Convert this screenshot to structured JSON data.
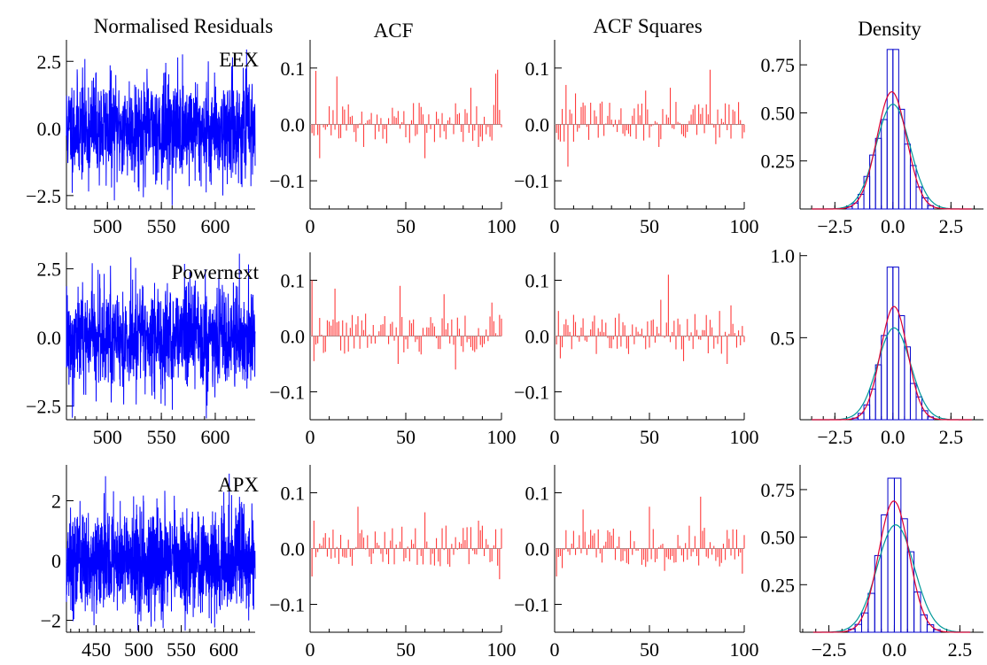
{
  "figure": {
    "column_titles": [
      "Normalised Residuals",
      "ACF",
      "ACF Squares",
      "Density"
    ]
  },
  "colors": {
    "residuals": "#0000ff",
    "acf_bars": "#ff3b3b",
    "zero_line": "#999999",
    "histogram": "#0000cc",
    "kernel_density": "#dd0033",
    "normal_density": "#009999",
    "axis": "#000000"
  },
  "chart_data": [
    {
      "type": "line",
      "panel": "residuals-eex",
      "series_label": "EEX",
      "x_range": [
        462,
        637
      ],
      "ylim": [
        -3.0,
        3.3
      ],
      "x_ticks": [
        500,
        550,
        600
      ],
      "y_ticks": [
        2.5,
        0.0,
        -2.5
      ],
      "y_tick_labels": [
        "2.5",
        "0.0",
        "−2.5"
      ],
      "n_points": 176,
      "seed": 11,
      "spread": 0.95
    },
    {
      "type": "bar",
      "panel": "acf-eex",
      "xlim": [
        0,
        100
      ],
      "ylim": [
        -0.15,
        0.15
      ],
      "x_ticks": [
        0,
        50,
        100
      ],
      "y_ticks": [
        0.1,
        0.0,
        -0.1
      ],
      "y_tick_labels": [
        "0.1",
        "0.0",
        "−0.1"
      ],
      "lags": 100,
      "seed": 21,
      "peaks": [
        [
          3,
          0.095
        ],
        [
          14,
          0.085
        ],
        [
          5,
          -0.06
        ],
        [
          28,
          -0.04
        ],
        [
          60,
          -0.06
        ],
        [
          84,
          0.065
        ],
        [
          98,
          0.097
        ],
        [
          97,
          0.09
        ],
        [
          88,
          -0.04
        ]
      ]
    },
    {
      "type": "bar",
      "panel": "acf-squares-eex",
      "xlim": [
        0,
        100
      ],
      "ylim": [
        -0.15,
        0.15
      ],
      "x_ticks": [
        0,
        50,
        100
      ],
      "y_ticks": [
        0.1,
        0.0,
        -0.1
      ],
      "y_tick_labels": [
        "0.1",
        "0.0",
        "−0.1"
      ],
      "lags": 100,
      "seed": 31,
      "peaks": [
        [
          6,
          0.07
        ],
        [
          7,
          -0.075
        ],
        [
          11,
          0.055
        ],
        [
          48,
          0.06
        ],
        [
          55,
          -0.04
        ],
        [
          61,
          0.065
        ],
        [
          82,
          0.097
        ],
        [
          85,
          -0.035
        ]
      ]
    },
    {
      "type": "bar",
      "panel": "density-eex",
      "xlim": [
        -4.0,
        3.9
      ],
      "ylim": [
        0,
        0.88
      ],
      "x_ticks": [
        -2.5,
        0.0,
        2.5
      ],
      "x_tick_labels": [
        "−2.5",
        "0.0",
        "2.5"
      ],
      "y_ticks": [
        0.75,
        0.5,
        0.25
      ],
      "y_tick_labels": [
        "0.75",
        "0.50",
        "0.25"
      ],
      "bin_width": 0.25,
      "normal_mean": 0.0,
      "normal_sd": 0.73,
      "normal_peak": 0.545,
      "kernel_mean": -0.05,
      "kernel_sd": 0.64,
      "kernel_peak": 0.61,
      "center_bar_value": 0.83
    },
    {
      "type": "line",
      "panel": "residuals-powernext",
      "series_label": "Powernext",
      "x_range": [
        462,
        637
      ],
      "ylim": [
        -3.0,
        3.1
      ],
      "x_ticks": [
        500,
        550,
        600
      ],
      "y_ticks": [
        2.5,
        0.0,
        -2.5
      ],
      "y_tick_labels": [
        "2.5",
        "0.0",
        "−2.5"
      ],
      "n_points": 176,
      "seed": 12,
      "spread": 0.95
    },
    {
      "type": "bar",
      "panel": "acf-powernext",
      "xlim": [
        0,
        100
      ],
      "ylim": [
        -0.15,
        0.15
      ],
      "x_ticks": [
        0,
        50,
        100
      ],
      "y_ticks": [
        0.1,
        0.0,
        -0.1
      ],
      "y_tick_labels": [
        "0.1",
        "0.0",
        "−0.1"
      ],
      "lags": 100,
      "seed": 22,
      "peaks": [
        [
          1,
          0.1
        ],
        [
          2,
          -0.045
        ],
        [
          13,
          0.085
        ],
        [
          47,
          0.09
        ],
        [
          46,
          -0.05
        ],
        [
          70,
          0.075
        ],
        [
          76,
          -0.06
        ],
        [
          95,
          0.06
        ]
      ]
    },
    {
      "type": "bar",
      "panel": "acf-squares-powernext",
      "xlim": [
        0,
        100
      ],
      "ylim": [
        -0.15,
        0.15
      ],
      "x_ticks": [
        0,
        50,
        100
      ],
      "y_ticks": [
        0.1,
        0.0,
        -0.1
      ],
      "y_tick_labels": [
        "0.1",
        "0.0",
        "−0.1"
      ],
      "lags": 100,
      "seed": 32,
      "peaks": [
        [
          2,
          0.045
        ],
        [
          3,
          -0.04
        ],
        [
          56,
          0.065
        ],
        [
          60,
          0.11
        ],
        [
          68,
          -0.045
        ],
        [
          87,
          0.045
        ],
        [
          91,
          -0.05
        ],
        [
          93,
          0.055
        ]
      ]
    },
    {
      "type": "bar",
      "panel": "density-powernext",
      "xlim": [
        -4.0,
        3.9
      ],
      "ylim": [
        0,
        1.02
      ],
      "x_ticks": [
        -2.5,
        0.0,
        2.5
      ],
      "x_tick_labels": [
        "−2.5",
        "0.0",
        "2.5"
      ],
      "y_ticks": [
        1.0,
        0.5
      ],
      "y_tick_labels": [
        "1.0",
        "0.5"
      ],
      "bin_width": 0.25,
      "normal_mean": 0.05,
      "normal_sd": 0.71,
      "normal_peak": 0.56,
      "kernel_mean": 0.05,
      "kernel_sd": 0.58,
      "kernel_peak": 0.69,
      "center_bar_value": 0.93
    },
    {
      "type": "line",
      "panel": "residuals-apx",
      "series_label": "APX",
      "x_range": [
        415,
        637
      ],
      "ylim": [
        -2.4,
        3.2
      ],
      "x_ticks": [
        450,
        500,
        550,
        600
      ],
      "y_ticks": [
        2,
        0,
        -2
      ],
      "y_tick_labels": [
        "2",
        "0",
        "−2"
      ],
      "n_points": 223,
      "seed": 13,
      "spread": 0.85
    },
    {
      "type": "bar",
      "panel": "acf-apx",
      "xlim": [
        0,
        100
      ],
      "ylim": [
        -0.15,
        0.15
      ],
      "x_ticks": [
        0,
        50,
        100
      ],
      "y_ticks": [
        0.1,
        0.0,
        -0.1
      ],
      "y_tick_labels": [
        "0.1",
        "0.0",
        "−0.1"
      ],
      "lags": 100,
      "seed": 23,
      "peaks": [
        [
          1,
          -0.05
        ],
        [
          2,
          0.05
        ],
        [
          25,
          0.075
        ],
        [
          60,
          0.065
        ],
        [
          88,
          0.05
        ],
        [
          99,
          -0.055
        ]
      ]
    },
    {
      "type": "bar",
      "panel": "acf-squares-apx",
      "xlim": [
        0,
        100
      ],
      "ylim": [
        -0.15,
        0.15
      ],
      "x_ticks": [
        0,
        50,
        100
      ],
      "y_ticks": [
        0.1,
        0.0,
        -0.1
      ],
      "y_tick_labels": [
        "0.1",
        "0.0",
        "−0.1"
      ],
      "lags": 100,
      "seed": 33,
      "peaks": [
        [
          1,
          -0.05
        ],
        [
          4,
          -0.035
        ],
        [
          15,
          0.07
        ],
        [
          50,
          0.075
        ],
        [
          58,
          -0.04
        ],
        [
          77,
          0.093
        ],
        [
          99,
          -0.045
        ]
      ]
    },
    {
      "type": "bar",
      "panel": "density-apx",
      "xlim": [
        -3.6,
        3.4
      ],
      "ylim": [
        0,
        0.88
      ],
      "x_ticks": [
        -2.5,
        0.0,
        2.5
      ],
      "x_tick_labels": [
        "−2.5",
        "0.0",
        "2.5"
      ],
      "y_ticks": [
        0.75,
        0.5,
        0.25
      ],
      "y_tick_labels": [
        "0.75",
        "0.50",
        "0.25"
      ],
      "bin_width": 0.25,
      "normal_mean": 0.05,
      "normal_sd": 0.71,
      "normal_peak": 0.565,
      "kernel_mean": -0.02,
      "kernel_sd": 0.58,
      "kernel_peak": 0.69,
      "center_bar_value": 0.81
    }
  ]
}
